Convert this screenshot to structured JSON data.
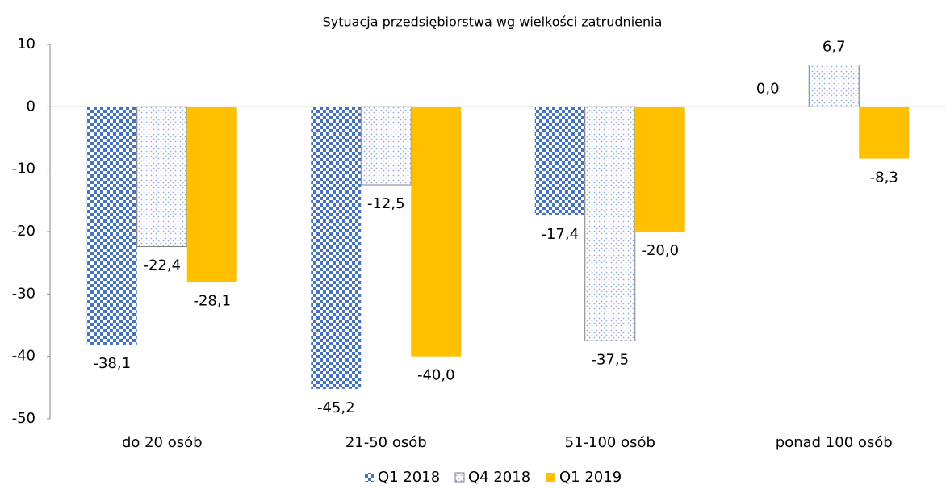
{
  "chart_data": {
    "type": "bar",
    "title": "Sytuacja przedsiębiorstwa wg wielkości zatrudnienia",
    "categories": [
      "do 20 osób",
      "21-50 osób",
      "51-100 osób",
      "ponad 100 osób"
    ],
    "series": [
      {
        "name": "Q1 2018",
        "color": "#4472c4",
        "fill": "checker",
        "values": [
          -38.1,
          -45.2,
          -17.4,
          0.0
        ],
        "value_labels": [
          "-38,1",
          "-45,2",
          "-17,4",
          "0,0"
        ]
      },
      {
        "name": "Q4 2018",
        "color": "#8faadc",
        "fill": "dots",
        "values": [
          -22.4,
          -12.5,
          -37.5,
          6.7
        ],
        "value_labels": [
          "-22,4",
          "-12,5",
          "-37,5",
          "6,7"
        ]
      },
      {
        "name": "Q1 2019",
        "color": "#ffc000",
        "fill": "solid",
        "values": [
          -28.1,
          -40.0,
          -20.0,
          -8.3
        ],
        "value_labels": [
          "-28,1",
          "-40,0",
          "-20,0",
          "-8,3"
        ]
      }
    ],
    "ylim": [
      -50,
      10
    ],
    "yticks": [
      -50,
      -40,
      -30,
      -20,
      -10,
      0,
      10
    ],
    "legend": "bottom"
  }
}
